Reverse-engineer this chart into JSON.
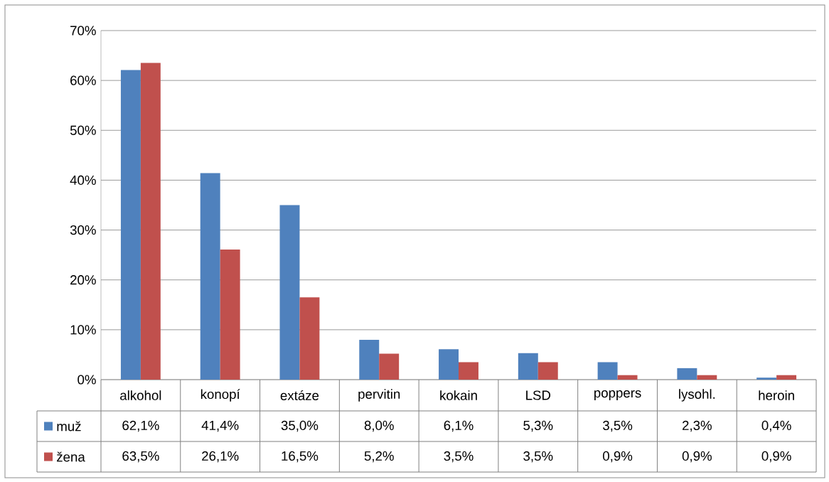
{
  "chart_data": {
    "type": "bar",
    "categories": [
      "alkohol",
      "konopí",
      "extáze",
      "pervitin",
      "kokain",
      "LSD",
      "poppers",
      "lysohl.",
      "heroin"
    ],
    "series": [
      {
        "name": "muž",
        "color": "#4f81bd",
        "values": [
          62.1,
          41.4,
          35.0,
          8.0,
          6.1,
          5.3,
          3.5,
          2.3,
          0.4
        ],
        "value_labels": [
          "62,1%",
          "41,4%",
          "35,0%",
          "8,0%",
          "6,1%",
          "5,3%",
          "3,5%",
          "2,3%",
          "0,4%"
        ]
      },
      {
        "name": "žena",
        "color": "#c0504d",
        "values": [
          63.5,
          26.1,
          16.5,
          5.2,
          3.5,
          3.5,
          0.9,
          0.9,
          0.9
        ],
        "value_labels": [
          "63,5%",
          "26,1%",
          "16,5%",
          "5,2%",
          "3,5%",
          "3,5%",
          "0,9%",
          "0,9%",
          "0,9%"
        ]
      }
    ],
    "ylim": [
      0,
      70
    ],
    "yticks": [
      {
        "value": 0,
        "label": "0%"
      },
      {
        "value": 10,
        "label": "10%"
      },
      {
        "value": 20,
        "label": "20%"
      },
      {
        "value": 30,
        "label": "30%"
      },
      {
        "value": 40,
        "label": "40%"
      },
      {
        "value": 50,
        "label": "50%"
      },
      {
        "value": 60,
        "label": "60%"
      },
      {
        "value": 70,
        "label": "70%"
      }
    ],
    "grid": "y",
    "legend": "bottom"
  }
}
